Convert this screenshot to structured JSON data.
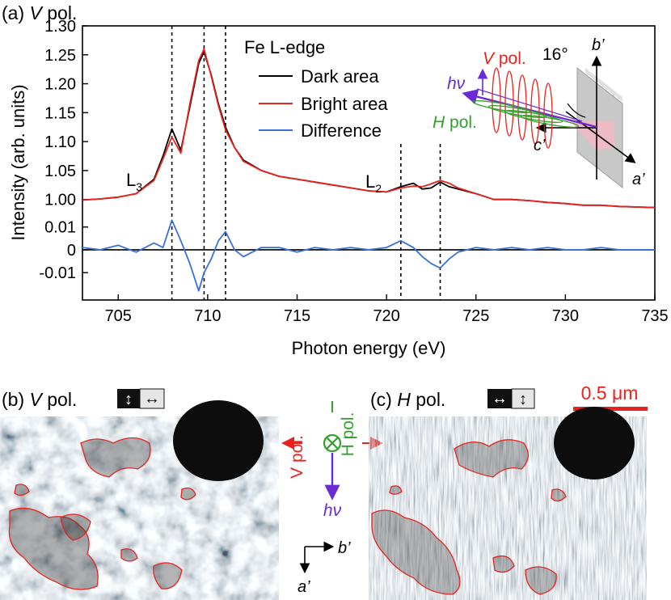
{
  "panel_a": {
    "label": "(a)",
    "pol_letter": "V",
    "pol_word": "pol.",
    "edge_label": "Fe L-edge",
    "legend": {
      "dark": "Dark area",
      "bright": "Bright area",
      "difference": "Difference"
    },
    "l3_label": "L",
    "l3_sub": "3",
    "l2_label": "L",
    "l2_sub": "2",
    "inset": {
      "v_pol_letter": "V",
      "v_pol_word": "pol.",
      "h_pol_letter": "H",
      "h_pol_word": "pol.",
      "hv": "hν",
      "angle": "16°",
      "b_axis": "b’",
      "c_axis": "c’",
      "a_axis": "a’"
    }
  },
  "panel_b": {
    "label": "(b)",
    "pol_letter": "V",
    "pol_word": "pol."
  },
  "panel_c": {
    "label": "(c)",
    "pol_letter": "H",
    "pol_word": "pol.",
    "scale_bar": "0.5 μm"
  },
  "middle_diagram": {
    "v_pol": "V pol.",
    "h_pol": "H pol.",
    "hv": "hν",
    "b_axis": "b’",
    "a_axis": "a’"
  },
  "colors": {
    "dark": "#000000",
    "bright": "#e8231f",
    "difference": "#3a6fd8",
    "h_pol": "#33a02c",
    "hv": "#6a2bd6"
  },
  "chart_data": {
    "type": "line",
    "xlabel": "Photon energy (eV)",
    "ylabel": "Intensity (arb. units)",
    "xlim": [
      703,
      735
    ],
    "x_ticks": [
      705,
      710,
      715,
      720,
      725,
      730,
      735
    ],
    "upper_ylim": [
      0.98,
      1.3
    ],
    "upper_ticks": [
      "1.00",
      "1.05",
      "1.10",
      "1.15",
      "1.20",
      "1.25",
      "1.30"
    ],
    "lower_ylim": [
      -0.022,
      0.017
    ],
    "lower_ticks": [
      "0.01",
      "0",
      "-0.01"
    ],
    "dashed_markers_ev": [
      708.0,
      709.8,
      711.0,
      720.8,
      723.0
    ],
    "energy": [
      703.0,
      704.0,
      705.0,
      706.0,
      707.0,
      707.5,
      708.0,
      708.5,
      709.0,
      709.5,
      709.8,
      710.2,
      710.6,
      711.0,
      711.5,
      712.0,
      713.0,
      714.0,
      715.0,
      716.0,
      717.0,
      718.0,
      719.0,
      720.0,
      720.8,
      721.5,
      722.0,
      722.5,
      723.0,
      723.5,
      724.0,
      725.0,
      726.0,
      727.0,
      728.0,
      729.0,
      730.0,
      731.0,
      732.0,
      733.0,
      734.0,
      735.0
    ],
    "series": [
      {
        "name": "Dark area",
        "panel": "upper",
        "values": [
          0.999,
          1.001,
          1.004,
          1.01,
          1.035,
          1.075,
          1.122,
          1.085,
          1.16,
          1.235,
          1.255,
          1.215,
          1.165,
          1.125,
          1.09,
          1.068,
          1.05,
          1.04,
          1.035,
          1.03,
          1.025,
          1.02,
          1.015,
          1.013,
          1.022,
          1.028,
          1.018,
          1.02,
          1.03,
          1.022,
          1.018,
          1.01,
          1.0,
          1.0,
          0.998,
          0.995,
          0.993,
          0.99,
          0.99,
          0.988,
          0.987,
          0.986
        ]
      },
      {
        "name": "Bright area",
        "panel": "upper",
        "values": [
          0.999,
          1.001,
          1.004,
          1.01,
          1.033,
          1.07,
          1.108,
          1.08,
          1.165,
          1.24,
          1.26,
          1.213,
          1.162,
          1.12,
          1.09,
          1.066,
          1.05,
          1.04,
          1.035,
          1.03,
          1.025,
          1.02,
          1.015,
          1.013,
          1.02,
          1.023,
          1.022,
          1.027,
          1.033,
          1.028,
          1.02,
          1.01,
          1.0,
          1.0,
          0.998,
          0.995,
          0.993,
          0.99,
          0.99,
          0.988,
          0.987,
          0.986
        ]
      },
      {
        "name": "Difference",
        "panel": "lower",
        "values": [
          0.001,
          0.0,
          0.002,
          -0.001,
          0.003,
          0.001,
          0.013,
          0.004,
          -0.006,
          -0.018,
          -0.01,
          -0.004,
          0.004,
          0.008,
          0.0,
          -0.003,
          0.001,
          0.001,
          -0.001,
          0.001,
          0.0,
          0.001,
          0.0,
          0.001,
          0.004,
          0.001,
          -0.003,
          -0.006,
          -0.008,
          -0.004,
          -0.001,
          0.001,
          0.0,
          0.001,
          0.0,
          0.001,
          0.0,
          0.0,
          0.001,
          0.0,
          0.0,
          0.0
        ]
      }
    ]
  }
}
